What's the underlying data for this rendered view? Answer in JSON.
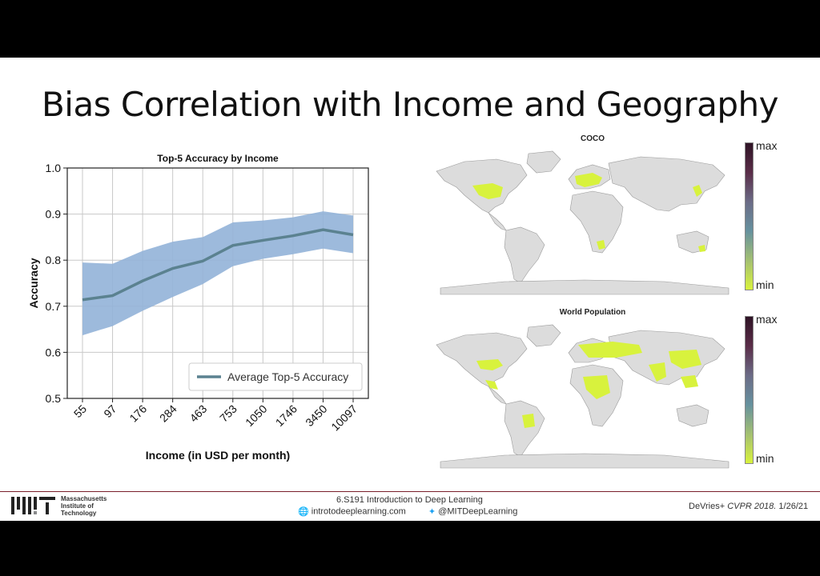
{
  "slide": {
    "title": "Bias Correlation with Income and Geography"
  },
  "chart_data": {
    "type": "line",
    "title": "Top-5 Accuracy by Income",
    "xlabel": "Income (in USD per month)",
    "ylabel": "Accuracy",
    "categories": [
      "55",
      "97",
      "176",
      "284",
      "463",
      "753",
      "1050",
      "1746",
      "3450",
      "10097"
    ],
    "series": [
      {
        "name": "Average Top-5 Accuracy",
        "values": [
          0.714,
          0.723,
          0.755,
          0.782,
          0.798,
          0.832,
          0.843,
          0.853,
          0.866,
          0.855
        ],
        "lower": [
          0.637,
          0.657,
          0.69,
          0.72,
          0.748,
          0.787,
          0.803,
          0.813,
          0.825,
          0.815
        ],
        "upper": [
          0.795,
          0.792,
          0.82,
          0.84,
          0.85,
          0.882,
          0.886,
          0.893,
          0.906,
          0.897
        ],
        "line_color": "#5b8290",
        "band_color": "#92b2d8"
      }
    ],
    "ylim": [
      0.5,
      1.0
    ],
    "yticks": [
      "0.5",
      "0.6",
      "0.7",
      "0.8",
      "0.9",
      "1.0"
    ],
    "grid": true,
    "legend_position": "bottom-right"
  },
  "maps": [
    {
      "title": "COCO",
      "colorbar": {
        "max_label": "max",
        "min_label": "min"
      },
      "highlight_color": "#d8f23d"
    },
    {
      "title": "World Population",
      "colorbar": {
        "max_label": "max",
        "min_label": "min"
      },
      "highlight_color": "#d8f23d"
    }
  ],
  "footer": {
    "institution_lines": [
      "Massachusetts",
      "Institute of",
      "Technology"
    ],
    "course": "6.S191 Introduction to Deep Learning",
    "website": "introtodeeplearning.com",
    "twitter": "@MITDeepLearning",
    "citation_authors": "DeVries+",
    "citation_venue": "CVPR 2018.",
    "date": "1/26/21"
  }
}
